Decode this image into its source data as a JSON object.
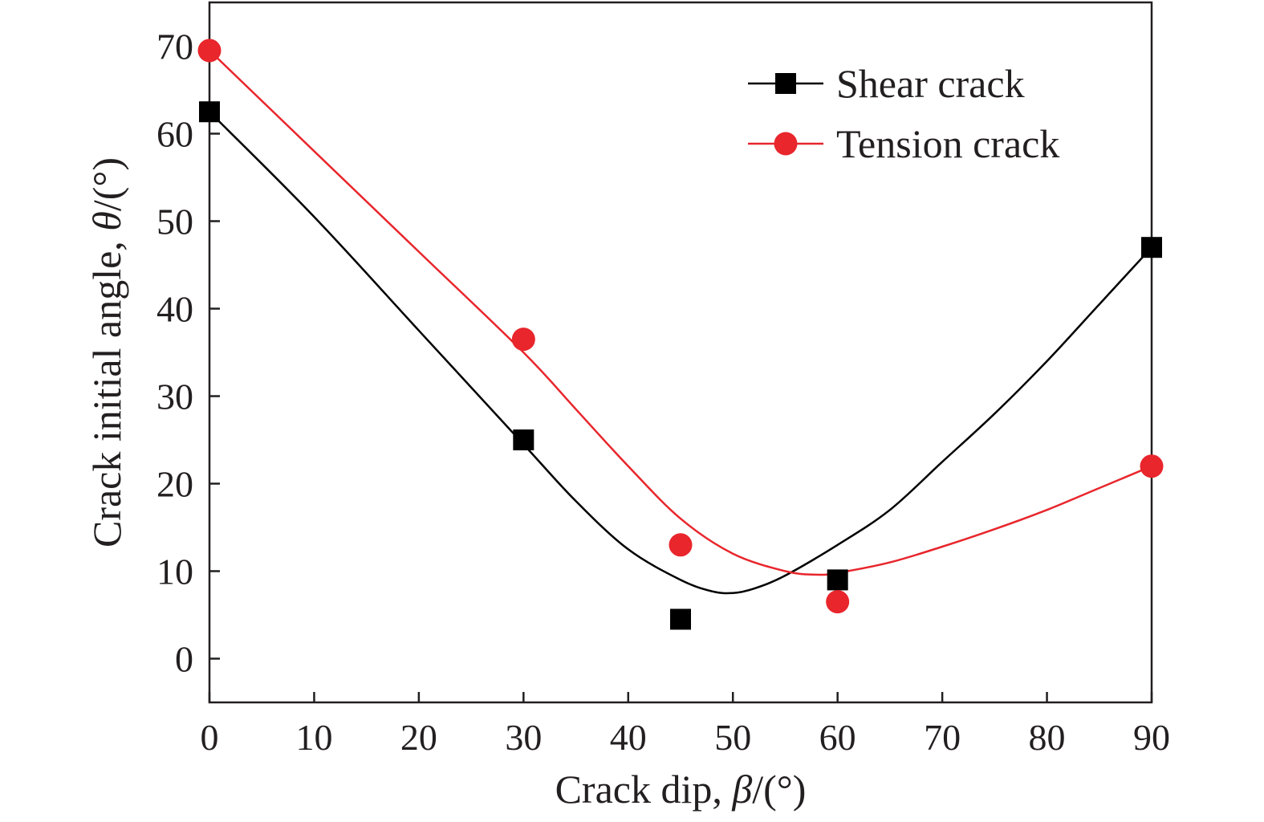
{
  "chart_data": {
    "type": "scatter",
    "xlabel": {
      "prefix": "Crack dip, ",
      "symbol": "β",
      "suffix": "/(°)"
    },
    "ylabel": {
      "prefix": "Crack initial angle, ",
      "symbol": "θ",
      "suffix": "/(°)"
    },
    "xlim": [
      0,
      90
    ],
    "ylim": [
      -5,
      75
    ],
    "x_ticks": [
      0,
      10,
      20,
      30,
      40,
      50,
      60,
      70,
      80,
      90
    ],
    "y_ticks": [
      0,
      10,
      20,
      30,
      40,
      50,
      60,
      70
    ],
    "x_tick_labels": [
      "0",
      "10",
      "20",
      "30",
      "40",
      "50",
      "60",
      "70",
      "80",
      "90"
    ],
    "y_tick_labels": [
      "0",
      "10",
      "20",
      "30",
      "40",
      "50",
      "60",
      "70"
    ],
    "grid": false,
    "legend_position": "top-right",
    "series": [
      {
        "name": "Shear crack",
        "color": "#000000",
        "marker": "square",
        "x": [
          0,
          30,
          45,
          60,
          90
        ],
        "y": [
          62.5,
          25,
          4.5,
          9,
          47
        ],
        "fit_curve": {
          "x": [
            0,
            10,
            20,
            30,
            35,
            40,
            45,
            48,
            50,
            52,
            55,
            60,
            65,
            70,
            75,
            80,
            85,
            90
          ],
          "y": [
            62.5,
            50.5,
            37.5,
            24.5,
            18,
            12.5,
            9,
            7.7,
            7.5,
            8,
            9.5,
            13,
            17,
            22.5,
            28,
            34,
            40.5,
            47
          ]
        }
      },
      {
        "name": "Tension crack",
        "color": "#e8262c",
        "marker": "circle",
        "x": [
          0,
          30,
          45,
          60,
          90
        ],
        "y": [
          69.5,
          36.5,
          13,
          6.5,
          22
        ],
        "fit_curve": {
          "x": [
            0,
            10,
            20,
            30,
            35,
            40,
            45,
            50,
            55,
            58,
            60,
            65,
            70,
            75,
            80,
            85,
            90
          ],
          "y": [
            69.5,
            58,
            46.5,
            35,
            28.5,
            22,
            16,
            12,
            10,
            9.6,
            9.8,
            11,
            12.8,
            14.8,
            17,
            19.5,
            22
          ]
        }
      }
    ]
  }
}
